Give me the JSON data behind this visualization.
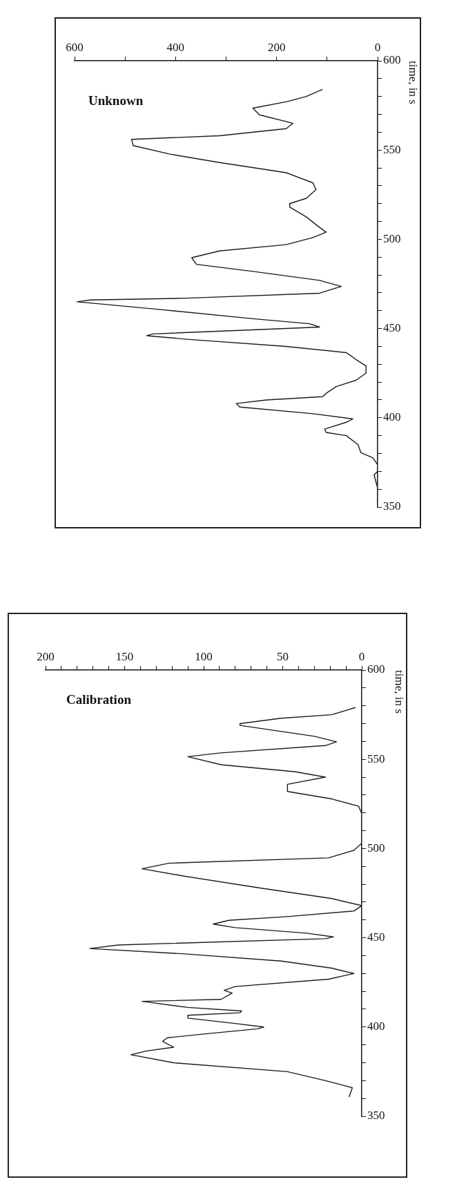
{
  "chart_data": [
    {
      "type": "line",
      "title": "Unknown",
      "ylabel": "time, in s",
      "color": "#1a1a1a",
      "marker": "none",
      "grid": false,
      "values": [
        360.5,
        368,
        370,
        373.8,
        377.6,
        380.4,
        385,
        390,
        391.8,
        393.7,
        397.5,
        399.4,
        402.3,
        406,
        408,
        410,
        411.8,
        413.7,
        417.5,
        421,
        425,
        429,
        432.7,
        436.5,
        440,
        444,
        446,
        447,
        449,
        450.8,
        452.7,
        455.5,
        461,
        465,
        466,
        467,
        469.8,
        473.6,
        477,
        482,
        486,
        489.7,
        493.5,
        497,
        501,
        504,
        506.7,
        512.5,
        518,
        520,
        523,
        527.8,
        531.6,
        537.3,
        543,
        547.7,
        552.5,
        556,
        558,
        562,
        565,
        569.7,
        573.5,
        577,
        580,
        584
      ],
      "x": [
        0,
        7,
        0,
        0,
        10,
        33,
        39,
        62,
        102,
        105,
        62,
        49,
        128,
        273,
        280,
        220,
        109,
        102,
        82,
        43,
        23,
        23,
        43,
        62,
        181,
        378,
        457,
        444,
        273,
        115,
        135,
        247,
        444,
        595,
        569,
        378,
        115,
        72,
        115,
        247,
        359,
        368,
        313,
        181,
        128,
        102,
        115,
        141,
        174,
        174,
        141,
        122,
        128,
        181,
        313,
        411,
        484,
        487,
        313,
        181,
        168,
        234,
        247,
        181,
        141,
        109
      ],
      "ylim": [
        350,
        600
      ],
      "yticks": [
        350,
        {
          "value": 360,
          "label": null
        },
        {
          "value": 370,
          "label": null
        },
        {
          "value": 380,
          "label": null
        },
        {
          "value": 390,
          "label": null
        },
        400,
        {
          "value": 410,
          "label": null
        },
        {
          "value": 420,
          "label": null
        },
        {
          "value": 430,
          "label": null
        },
        {
          "value": 440,
          "label": null
        },
        450,
        {
          "value": 460,
          "label": null
        },
        {
          "value": 470,
          "label": null
        },
        {
          "value": 480,
          "label": null
        },
        {
          "value": 490,
          "label": null
        },
        500,
        {
          "value": 510,
          "label": null
        },
        {
          "value": 520,
          "label": null
        },
        {
          "value": 530,
          "label": null
        },
        {
          "value": 540,
          "label": null
        },
        550,
        {
          "value": 560,
          "label": null
        },
        {
          "value": 570,
          "label": null
        },
        {
          "value": 580,
          "label": null
        },
        {
          "value": 590,
          "label": null
        },
        600
      ],
      "xlim": [
        600,
        0
      ],
      "xticks": [
        0,
        {
          "value": 100,
          "label": null
        },
        200,
        {
          "value": 300,
          "label": null
        },
        400,
        {
          "value": 500,
          "label": null
        },
        600
      ]
    },
    {
      "type": "line",
      "title": "Calibration",
      "ylabel": "time, in s",
      "color": "#1a1a1a",
      "marker": "none",
      "grid": false,
      "values": [
        360.8,
        366,
        367,
        370,
        375,
        380,
        384.5,
        386.6,
        388.7,
        392,
        394,
        396,
        399,
        400,
        402,
        405,
        406.6,
        408,
        409,
        411,
        414.4,
        415.5,
        419,
        420.6,
        422.7,
        426.8,
        430,
        433,
        437,
        441,
        444,
        446,
        449.5,
        450.5,
        452.6,
        455.7,
        457.7,
        459.8,
        461.9,
        465,
        468,
        472,
        478,
        484.5,
        488.7,
        491.8,
        494.8,
        499,
        503,
        519.6,
        523.7,
        527.8,
        532,
        536,
        540,
        543,
        547,
        551.5,
        553.6,
        557.7,
        559.8,
        562.9,
        569,
        570,
        573,
        575,
        579
      ],
      "x": [
        8,
        6,
        10,
        23,
        47,
        119,
        146,
        136,
        119,
        126,
        123,
        101,
        66,
        62,
        80,
        110,
        110,
        77,
        76,
        110,
        139,
        89,
        82,
        87,
        80,
        21,
        5,
        19,
        51,
        112,
        172,
        154,
        23,
        18,
        35,
        80,
        94,
        84,
        47,
        5,
        0,
        19,
        65,
        112,
        139,
        122,
        21,
        5,
        0,
        0,
        2,
        19,
        47,
        47,
        23,
        42,
        89,
        110,
        89,
        23,
        16,
        30,
        77,
        77,
        51,
        19,
        4
      ],
      "ylim": [
        350,
        600
      ],
      "yticks": [
        350,
        {
          "value": 360,
          "label": null
        },
        {
          "value": 370,
          "label": null
        },
        {
          "value": 380,
          "label": null
        },
        {
          "value": 390,
          "label": null
        },
        400,
        {
          "value": 410,
          "label": null
        },
        {
          "value": 420,
          "label": null
        },
        {
          "value": 430,
          "label": null
        },
        {
          "value": 440,
          "label": null
        },
        450,
        {
          "value": 460,
          "label": null
        },
        {
          "value": 470,
          "label": null
        },
        {
          "value": 480,
          "label": null
        },
        {
          "value": 490,
          "label": null
        },
        500,
        {
          "value": 510,
          "label": null
        },
        {
          "value": 520,
          "label": null
        },
        {
          "value": 530,
          "label": null
        },
        {
          "value": 540,
          "label": null
        },
        550,
        {
          "value": 560,
          "label": null
        },
        {
          "value": 570,
          "label": null
        },
        {
          "value": 580,
          "label": null
        },
        {
          "value": 590,
          "label": null
        },
        600
      ],
      "xlim": [
        200,
        0
      ],
      "xticks": [
        0,
        {
          "value": 10,
          "label": null
        },
        {
          "value": 20,
          "label": null
        },
        {
          "value": 30,
          "label": null
        },
        {
          "value": 40,
          "label": null
        },
        50,
        {
          "value": 60,
          "label": null
        },
        {
          "value": 70,
          "label": null
        },
        {
          "value": 80,
          "label": null
        },
        {
          "value": 90,
          "label": null
        },
        100,
        {
          "value": 110,
          "label": null
        },
        {
          "value": 120,
          "label": null
        },
        {
          "value": 130,
          "label": null
        },
        {
          "value": 140,
          "label": null
        },
        150,
        {
          "value": 160,
          "label": null
        },
        {
          "value": 170,
          "label": null
        },
        {
          "value": 180,
          "label": null
        },
        {
          "value": 190,
          "label": null
        },
        200
      ]
    }
  ]
}
